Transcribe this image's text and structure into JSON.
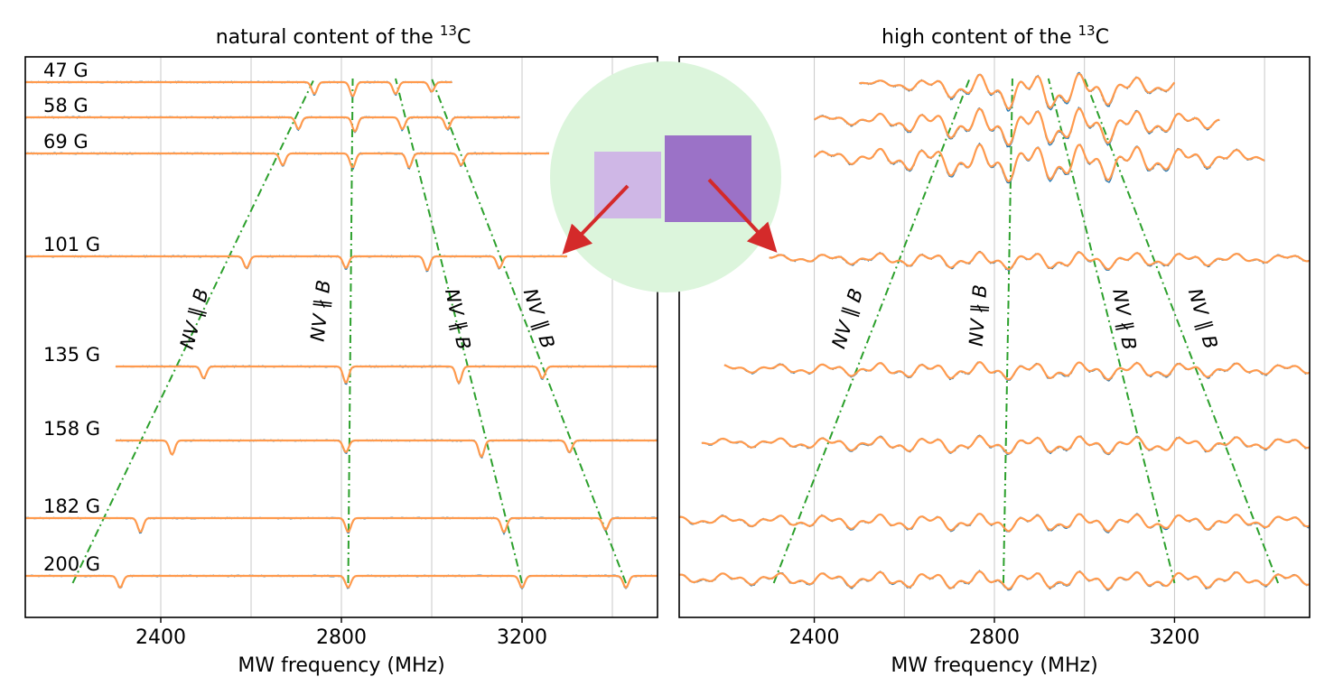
{
  "chart_data": [
    {
      "type": "line",
      "title": "natural content of the",
      "title_sup": "13",
      "title_tail": "C",
      "xlabel": "MW frequency (MHz)",
      "xlim": [
        2100,
        3500
      ],
      "xticks": [
        2400,
        2800,
        3200
      ],
      "xtick_labels": [
        "2400",
        "2800",
        "3200"
      ],
      "gridlines": [
        2400,
        2600,
        2800,
        3000,
        3200,
        3400
      ],
      "legend": "none",
      "series_colors": {
        "measured": "#1f77b4",
        "fit": "#ff9a4d",
        "guide": "#2ca02c"
      },
      "spectra": [
        {
          "label": "47 G",
          "field_G": 47,
          "x_range": [
            2100,
            3045
          ],
          "dips_MHz": [
            2740,
            2825,
            2920,
            3000
          ],
          "dip_depth": [
            0.5,
            0.6,
            0.5,
            0.4
          ]
        },
        {
          "label": "58 G",
          "field_G": 58,
          "x_range": [
            2100,
            3195
          ],
          "dips_MHz": [
            2705,
            2830,
            2935,
            3035
          ],
          "dip_depth": [
            0.5,
            0.6,
            0.5,
            0.5
          ]
        },
        {
          "label": "69 G",
          "field_G": 69,
          "x_range": [
            2100,
            3260
          ],
          "dips_MHz": [
            2670,
            2825,
            2950,
            3065
          ],
          "dip_depth": [
            0.5,
            0.6,
            0.6,
            0.5
          ]
        },
        {
          "label": "101 G",
          "field_G": 101,
          "x_range": [
            2100,
            3300
          ],
          "dips_MHz": [
            2590,
            2810,
            2990,
            3150
          ],
          "dip_depth": [
            0.5,
            0.5,
            0.6,
            0.5
          ]
        },
        {
          "label": "135 G",
          "field_G": 135,
          "x_range": [
            2300,
            3500
          ],
          "dips_MHz": [
            2495,
            2810,
            3060,
            3245
          ],
          "dip_depth": [
            0.5,
            0.7,
            0.7,
            0.5
          ]
        },
        {
          "label": "158 G",
          "field_G": 158,
          "x_range": [
            2300,
            3500
          ],
          "dips_MHz": [
            2425,
            2810,
            3110,
            3305
          ],
          "dip_depth": [
            0.6,
            0.5,
            0.7,
            0.5
          ]
        },
        {
          "label": "182 G",
          "field_G": 182,
          "x_range": [
            2100,
            3500
          ],
          "dips_MHz": [
            2355,
            2815,
            3160,
            3385
          ],
          "dip_depth": [
            0.6,
            0.6,
            0.6,
            0.5
          ]
        },
        {
          "label": "200 G",
          "field_G": 200,
          "x_range": [
            2100,
            3500
          ],
          "dips_MHz": [
            2310,
            2815,
            3200,
            3430
          ],
          "dip_depth": [
            0.5,
            0.5,
            0.5,
            0.5
          ]
        }
      ],
      "guides": [
        {
          "label": "NV ∥ B",
          "from": [
            2205,
            0.0
          ],
          "to": [
            2740,
            1.0
          ]
        },
        {
          "label": "NV ∦ B",
          "from": [
            2815,
            0.0
          ],
          "to": [
            2825,
            1.0
          ]
        },
        {
          "label": "NV ∦ B",
          "from": [
            3200,
            0.0
          ],
          "to": [
            2920,
            1.0
          ]
        },
        {
          "label": "NV ∥ B",
          "from": [
            3430,
            0.0
          ],
          "to": [
            3000,
            1.0
          ]
        }
      ],
      "annotations": [
        "NV ∥ B",
        "NV ∦ B",
        "NV ∦ B",
        "NV ∥ B"
      ]
    },
    {
      "type": "line",
      "title": "high content of the",
      "title_sup": "13",
      "title_tail": "C",
      "xlabel": "MW frequency (MHz)",
      "xlim": [
        2100,
        3500
      ],
      "xticks": [
        2400,
        2800,
        3200
      ],
      "xtick_labels": [
        "2400",
        "2800",
        "3200"
      ],
      "gridlines": [
        2400,
        2600,
        2800,
        3000,
        3200,
        3400
      ],
      "legend": "none",
      "spectra": [
        {
          "field_G": 47,
          "x_range": [
            2500,
            3200
          ],
          "center_MHz": 2910,
          "width_MHz": 190
        },
        {
          "field_G": 58,
          "x_range": [
            2400,
            3300
          ],
          "center_MHz": 2910,
          "width_MHz": 260
        },
        {
          "field_G": 69,
          "x_range": [
            2400,
            3400
          ],
          "center_MHz": 2910,
          "width_MHz": 300
        },
        {
          "field_G": 101,
          "x_range": [
            2300,
            3500
          ],
          "center_MHz": 2910,
          "width_MHz": 420
        },
        {
          "field_G": 135,
          "x_range": [
            2200,
            3500
          ],
          "center_MHz": 2910,
          "width_MHz": 520
        },
        {
          "field_G": 158,
          "x_range": [
            2150,
            3500
          ],
          "center_MHz": 2910,
          "width_MHz": 560
        },
        {
          "field_G": 182,
          "x_range": [
            2100,
            3500
          ],
          "center_MHz": 2910,
          "width_MHz": 640
        },
        {
          "field_G": 200,
          "x_range": [
            2100,
            3500
          ],
          "center_MHz": 2910,
          "width_MHz": 700
        }
      ],
      "guides": [
        {
          "label": "NV ∥ B",
          "from": [
            2310,
            0.0
          ],
          "to": [
            2745,
            1.0
          ]
        },
        {
          "label": "NV ∦ B",
          "from": [
            2820,
            0.0
          ],
          "to": [
            2840,
            1.0
          ]
        },
        {
          "label": "NV ∦ B",
          "from": [
            3200,
            0.0
          ],
          "to": [
            2920,
            1.0
          ]
        },
        {
          "label": "NV ∥ B",
          "from": [
            3430,
            0.0
          ],
          "to": [
            3000,
            1.0
          ]
        }
      ],
      "annotations": [
        "NV ∥ B",
        "NV ∦ B",
        "NV ∦ B",
        "NV ∥ B"
      ]
    }
  ],
  "inset": {
    "description_colors": {
      "circle": "#dcf5dc",
      "small_square": "#cfb7e6",
      "large_square": "#9b72c7",
      "arrows": "#d42a2a"
    }
  }
}
